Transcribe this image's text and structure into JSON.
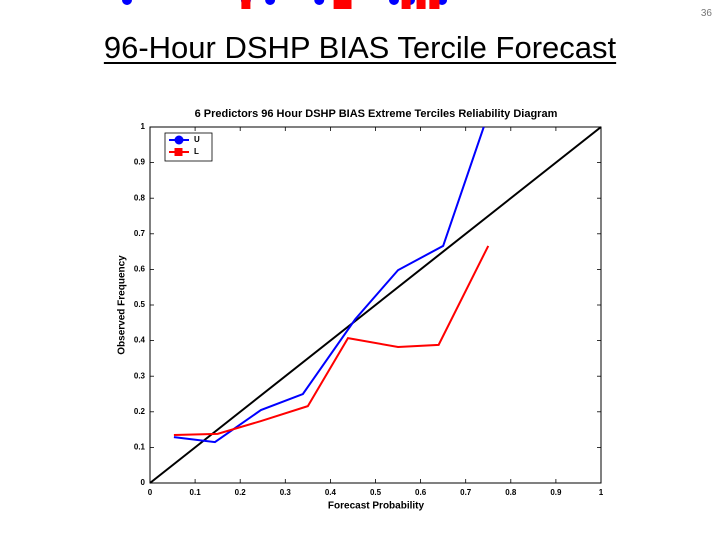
{
  "slide_number": "36",
  "title": "96-Hour DSHP BIAS Tercile Forecast",
  "chart_data": {
    "type": "line",
    "title": "6 Predictors  96  Hour DSHP BIAS Extreme Terciles Reliability Diagram",
    "x_label": "Forecast Probability",
    "y_label": "Observed Frequency",
    "xlim": [
      0,
      1
    ],
    "ylim": [
      0,
      1
    ],
    "xticks": [
      0,
      0.1,
      0.2,
      0.3,
      0.4,
      0.5,
      0.6,
      0.7,
      0.8,
      0.9,
      1
    ],
    "yticks": [
      0,
      0.1,
      0.2,
      0.3,
      0.4,
      0.5,
      0.6,
      0.7,
      0.8,
      0.9,
      1
    ],
    "legend": "upper left",
    "series": [
      {
        "name": "U",
        "color": "#0000ff",
        "marker": "circle",
        "x": [
          0.053,
          0.144,
          0.246,
          0.339,
          0.455,
          0.55,
          0.65,
          0.74
        ],
        "values": [
          0.129,
          0.115,
          0.205,
          0.25,
          0.46,
          0.598,
          0.666,
          1.0
        ]
      },
      {
        "name": "L",
        "color": "#ff0000",
        "marker": "square",
        "x": [
          0.053,
          0.15,
          0.246,
          0.35,
          0.439,
          0.55,
          0.64,
          0.75
        ],
        "values": [
          0.135,
          0.138,
          0.174,
          0.216,
          0.407,
          0.382,
          0.388,
          0.666
        ]
      }
    ]
  }
}
